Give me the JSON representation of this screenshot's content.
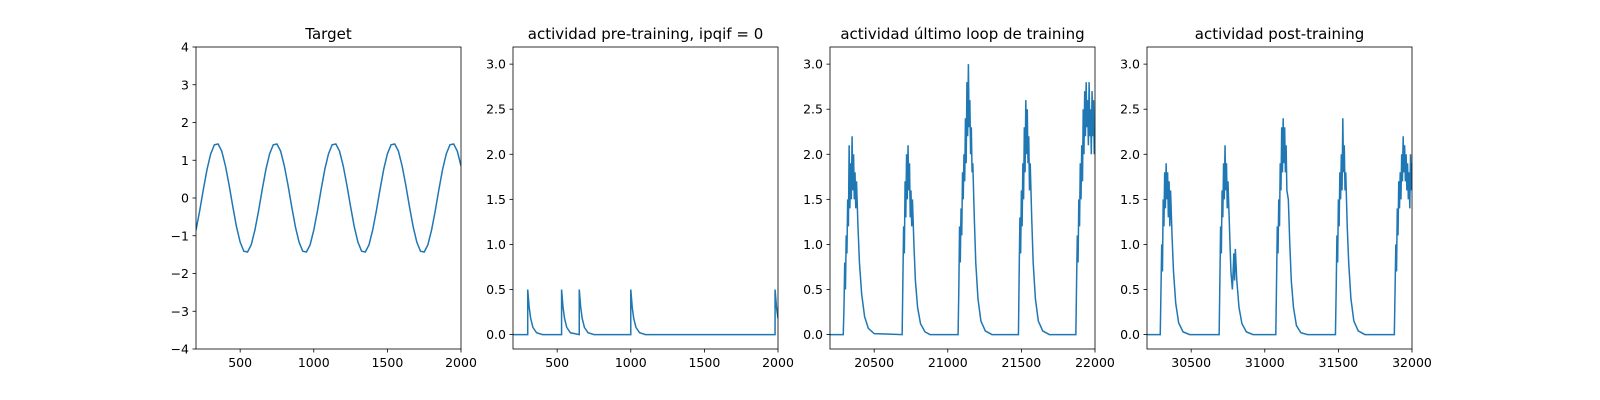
{
  "chart_data": [
    {
      "type": "line",
      "title": "Target",
      "color": "#1f77b4",
      "x": [
        200,
        225,
        250,
        275,
        300,
        325,
        350,
        375,
        400,
        425,
        450,
        475,
        500,
        525,
        550,
        575,
        600,
        625,
        650,
        675,
        700,
        725,
        750,
        775,
        800,
        825,
        850,
        875,
        900,
        925,
        950,
        975,
        1000,
        1025,
        1050,
        1075,
        1100,
        1125,
        1150,
        1175,
        1200,
        1225,
        1250,
        1275,
        1300,
        1325,
        1350,
        1375,
        1400,
        1425,
        1450,
        1475,
        1500,
        1525,
        1550,
        1575,
        1600,
        1625,
        1650,
        1675,
        1700,
        1725,
        1750,
        1775,
        1800,
        1825,
        1850,
        1875,
        1900,
        1925,
        1950,
        1975,
        2000
      ],
      "values": [
        -0.85,
        -0.34,
        0.23,
        0.76,
        1.17,
        1.41,
        1.43,
        1.24,
        0.85,
        0.34,
        -0.23,
        -0.76,
        -1.17,
        -1.41,
        -1.43,
        -1.24,
        -0.85,
        -0.34,
        0.23,
        0.76,
        1.17,
        1.41,
        1.43,
        1.24,
        0.85,
        0.34,
        -0.23,
        -0.76,
        -1.17,
        -1.41,
        -1.43,
        -1.24,
        -0.85,
        -0.34,
        0.23,
        0.76,
        1.17,
        1.41,
        1.43,
        1.24,
        0.85,
        0.34,
        -0.23,
        -0.76,
        -1.17,
        -1.41,
        -1.43,
        -1.24,
        -0.85,
        -0.34,
        0.23,
        0.76,
        1.17,
        1.41,
        1.43,
        1.24,
        0.85,
        0.34,
        -0.23,
        -0.76,
        -1.17,
        -1.41,
        -1.43,
        -1.24,
        -0.85,
        -0.34,
        0.23,
        0.76,
        1.17,
        1.41,
        1.43,
        1.24,
        0.85
      ],
      "xlim": [
        200,
        2000
      ],
      "xticks": [
        500,
        1000,
        1500,
        2000
      ],
      "ylim": [
        -4,
        4
      ],
      "yticks": [
        {
          "value": -4,
          "label": "−4"
        },
        {
          "value": -3,
          "label": "−3"
        },
        {
          "value": -2,
          "label": "−2"
        },
        {
          "value": -1,
          "label": "−1"
        },
        0,
        1,
        2,
        3,
        4
      ]
    },
    {
      "type": "line",
      "title": "actividad pre-training, ipqif = 0",
      "color": "#1f77b4",
      "x": [
        200,
        300,
        300,
        310,
        320,
        335,
        360,
        400,
        530,
        530,
        540,
        550,
        565,
        590,
        650,
        650,
        660,
        670,
        685,
        710,
        750,
        1000,
        1000,
        1010,
        1020,
        1035,
        1060,
        1100,
        1980,
        1980,
        1990,
        2000
      ],
      "values": [
        0,
        0,
        0.5,
        0.3,
        0.18,
        0.08,
        0.02,
        0,
        0,
        0.5,
        0.3,
        0.18,
        0.08,
        0.02,
        0,
        0.5,
        0.3,
        0.18,
        0.08,
        0.02,
        0,
        0,
        0.5,
        0.3,
        0.18,
        0.08,
        0.02,
        0,
        0,
        0.5,
        0.3,
        0.18
      ],
      "xlim": [
        200,
        2000
      ],
      "xticks": [
        500,
        1000,
        1500,
        2000
      ],
      "ylim": [
        -0.16,
        3.19
      ],
      "yticks": [
        {
          "value": 0,
          "label": "0.0"
        },
        {
          "value": 0.5,
          "label": "0.5"
        },
        {
          "value": 1,
          "label": "1.0"
        },
        {
          "value": 1.5,
          "label": "1.5"
        },
        {
          "value": 2,
          "label": "2.0"
        },
        {
          "value": 2.5,
          "label": "2.5"
        },
        {
          "value": 3,
          "label": "3.0"
        }
      ]
    },
    {
      "type": "line",
      "title": "actividad último loop de training",
      "color": "#1f77b4",
      "x": [
        20200,
        20290,
        20295,
        20300,
        20305,
        20310,
        20315,
        20320,
        20325,
        20330,
        20335,
        20340,
        20345,
        20350,
        20355,
        20360,
        20365,
        20370,
        20375,
        20380,
        20390,
        20400,
        20415,
        20435,
        20460,
        20500,
        20690,
        20695,
        20700,
        20705,
        20710,
        20715,
        20720,
        20725,
        20730,
        20735,
        20740,
        20745,
        20750,
        20755,
        20760,
        20770,
        20780,
        20795,
        20815,
        20845,
        20880,
        21070,
        21075,
        21080,
        21085,
        21090,
        21095,
        21100,
        21105,
        21110,
        21115,
        21120,
        21125,
        21130,
        21135,
        21140,
        21145,
        21150,
        21155,
        21160,
        21165,
        21170,
        21180,
        21190,
        21205,
        21225,
        21255,
        21300,
        21480,
        21485,
        21490,
        21495,
        21500,
        21505,
        21510,
        21515,
        21520,
        21525,
        21530,
        21535,
        21540,
        21545,
        21550,
        21555,
        21560,
        21570,
        21580,
        21595,
        21615,
        21645,
        21690,
        21870,
        21875,
        21880,
        21885,
        21890,
        21895,
        21900,
        21905,
        21910,
        21915,
        21920,
        21925,
        21930,
        21935,
        21940,
        21945,
        21950,
        21955,
        21960,
        21965,
        21970,
        21975,
        21980,
        21985,
        21990,
        21995,
        22000
      ],
      "values": [
        0,
        0,
        0.3,
        0.8,
        0.5,
        1.1,
        0.9,
        1.5,
        1.2,
        2.1,
        1.4,
        1.9,
        1.5,
        2.2,
        1.6,
        2.0,
        1.5,
        1.8,
        1.4,
        1.7,
        1.2,
        0.8,
        0.45,
        0.2,
        0.07,
        0.01,
        0,
        0.6,
        1.2,
        0.9,
        1.7,
        1.3,
        2.0,
        1.5,
        2.1,
        1.6,
        1.9,
        1.3,
        1.6,
        1.2,
        1.5,
        1.0,
        0.6,
        0.3,
        0.12,
        0.03,
        0,
        0,
        0.5,
        1.2,
        0.8,
        1.4,
        1.1,
        1.8,
        1.5,
        2.0,
        1.7,
        2.4,
        1.9,
        2.8,
        2.2,
        3.0,
        2.3,
        2.6,
        2.0,
        2.3,
        1.8,
        1.9,
        1.3,
        0.8,
        0.4,
        0.15,
        0.04,
        0,
        0,
        0.7,
        1.3,
        0.9,
        1.6,
        1.2,
        1.9,
        1.5,
        2.3,
        1.8,
        2.6,
        2.0,
        2.5,
        1.9,
        2.2,
        1.6,
        1.9,
        1.3,
        0.8,
        0.4,
        0.15,
        0.04,
        0,
        0,
        0.6,
        1.1,
        0.8,
        1.5,
        1.2,
        1.9,
        1.5,
        2.1,
        1.7,
        2.5,
        2.0,
        2.7,
        2.2,
        2.8,
        2.3,
        2.6,
        2.1,
        2.8,
        2.2,
        2.5,
        2.0,
        2.7,
        2.2,
        2.6,
        2.0,
        2.3
      ],
      "xlim": [
        20200,
        22000
      ],
      "xticks": [
        20500,
        21000,
        21500,
        22000
      ],
      "ylim": [
        -0.16,
        3.19
      ],
      "yticks": [
        {
          "value": 0,
          "label": "0.0"
        },
        {
          "value": 0.5,
          "label": "0.5"
        },
        {
          "value": 1,
          "label": "1.0"
        },
        {
          "value": 1.5,
          "label": "1.5"
        },
        {
          "value": 2,
          "label": "2.0"
        },
        {
          "value": 2.5,
          "label": "2.5"
        },
        {
          "value": 3,
          "label": "3.0"
        }
      ]
    },
    {
      "type": "line",
      "title": "actividad post-training",
      "color": "#1f77b4",
      "x": [
        30200,
        30290,
        30295,
        30300,
        30305,
        30310,
        30315,
        30320,
        30325,
        30330,
        30335,
        30340,
        30345,
        30350,
        30355,
        30360,
        30370,
        30380,
        30395,
        30415,
        30445,
        30490,
        30690,
        30695,
        30700,
        30705,
        30710,
        30715,
        30720,
        30725,
        30730,
        30735,
        30740,
        30745,
        30750,
        30760,
        30770,
        30780,
        30790,
        30795,
        30800,
        30810,
        30825,
        30845,
        30875,
        30920,
        31075,
        31080,
        31085,
        31090,
        31095,
        31100,
        31105,
        31110,
        31115,
        31120,
        31125,
        31130,
        31135,
        31140,
        31145,
        31150,
        31160,
        31170,
        31180,
        31195,
        31215,
        31245,
        31290,
        31480,
        31485,
        31490,
        31495,
        31500,
        31505,
        31510,
        31515,
        31520,
        31525,
        31530,
        31535,
        31540,
        31545,
        31550,
        31560,
        31570,
        31585,
        31605,
        31635,
        31680,
        31880,
        31885,
        31890,
        31895,
        31900,
        31905,
        31910,
        31915,
        31920,
        31925,
        31930,
        31935,
        31940,
        31945,
        31950,
        31955,
        31960,
        31965,
        31970,
        31975,
        31980,
        31985,
        31990,
        31995,
        32000
      ],
      "values": [
        0,
        0,
        0.5,
        1.0,
        0.7,
        1.5,
        1.2,
        1.8,
        1.4,
        1.9,
        1.5,
        1.8,
        1.3,
        1.7,
        1.2,
        1.6,
        1.1,
        0.7,
        0.35,
        0.13,
        0.03,
        0,
        0,
        0.6,
        1.2,
        0.9,
        1.6,
        1.3,
        1.9,
        1.5,
        2.1,
        1.6,
        1.9,
        1.4,
        1.7,
        1.2,
        0.7,
        0.5,
        0.9,
        0.6,
        0.95,
        0.6,
        0.3,
        0.12,
        0.03,
        0,
        0,
        0.6,
        1.2,
        0.9,
        1.5,
        1.2,
        1.9,
        1.6,
        2.3,
        1.8,
        2.4,
        1.9,
        2.3,
        1.8,
        2.1,
        1.6,
        1.5,
        1.0,
        0.6,
        0.3,
        0.1,
        0.02,
        0,
        0,
        0.5,
        1.1,
        0.8,
        1.5,
        1.2,
        1.8,
        1.5,
        2.0,
        1.6,
        2.4,
        1.8,
        2.1,
        1.6,
        1.8,
        1.2,
        0.8,
        0.4,
        0.15,
        0.04,
        0,
        0,
        0.5,
        1.0,
        0.7,
        1.4,
        1.1,
        1.7,
        1.4,
        1.8,
        1.5,
        2.0,
        1.7,
        2.2,
        1.8,
        2.1,
        1.7,
        2.0,
        1.6,
        1.9,
        1.5,
        1.8,
        1.4,
        2.0,
        1.6,
        1.9
      ],
      "xlim": [
        30200,
        32000
      ],
      "xticks": [
        30500,
        31000,
        31500,
        32000
      ],
      "ylim": [
        -0.16,
        3.19
      ],
      "yticks": [
        {
          "value": 0,
          "label": "0.0"
        },
        {
          "value": 0.5,
          "label": "0.5"
        },
        {
          "value": 1,
          "label": "1.0"
        },
        {
          "value": 1.5,
          "label": "1.5"
        },
        {
          "value": 2,
          "label": "2.0"
        },
        {
          "value": 2.5,
          "label": "2.5"
        },
        {
          "value": 3,
          "label": "3.0"
        }
      ]
    }
  ]
}
